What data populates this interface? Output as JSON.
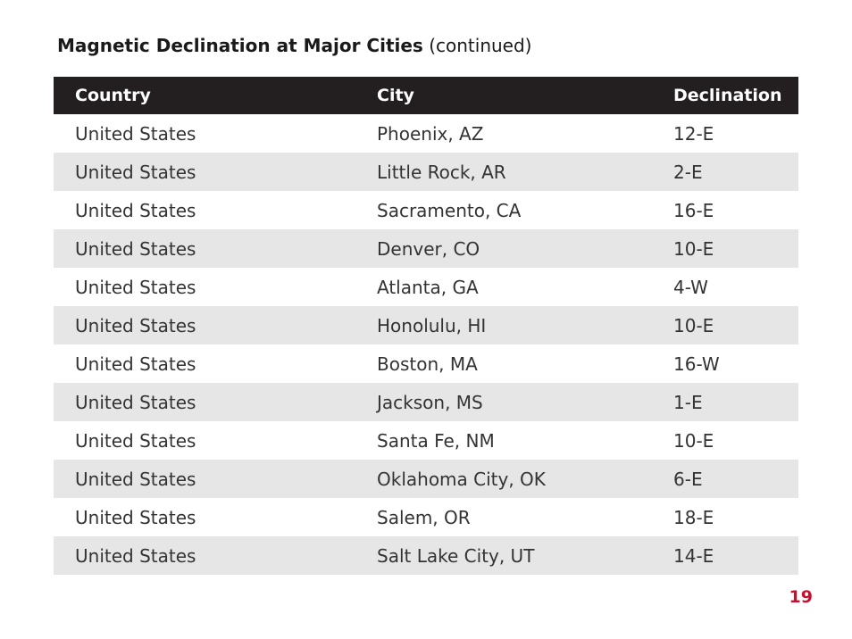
{
  "heading": {
    "title": "Magnetic Declination at Major Cities",
    "suffix": "(continued)"
  },
  "table": {
    "headers": {
      "country": "Country",
      "city": "City",
      "declination": "Declination"
    },
    "rows": [
      {
        "country": "United States",
        "city": "Phoenix, AZ",
        "declination": "12-E"
      },
      {
        "country": "United States",
        "city": "Little Rock, AR",
        "declination": "2-E"
      },
      {
        "country": "United States",
        "city": "Sacramento, CA",
        "declination": "16-E"
      },
      {
        "country": "United States",
        "city": "Denver, CO",
        "declination": "10-E"
      },
      {
        "country": "United States",
        "city": "Atlanta, GA",
        "declination": "4-W"
      },
      {
        "country": "United States",
        "city": "Honolulu, HI",
        "declination": "10-E"
      },
      {
        "country": "United States",
        "city": "Boston, MA",
        "declination": "16-W"
      },
      {
        "country": "United States",
        "city": "Jackson, MS",
        "declination": "1-E"
      },
      {
        "country": "United States",
        "city": "Santa Fe, NM",
        "declination": "10-E"
      },
      {
        "country": "United States",
        "city": "Oklahoma City, OK",
        "declination": "6-E"
      },
      {
        "country": "United States",
        "city": "Salem, OR",
        "declination": "18-E"
      },
      {
        "country": "United States",
        "city": "Salt Lake City, UT",
        "declination": "14-E"
      }
    ]
  },
  "page_number": "19",
  "colors": {
    "header_background": "#231f20",
    "stripe_background": "#e6e6e6",
    "page_number": "#c8102e"
  }
}
